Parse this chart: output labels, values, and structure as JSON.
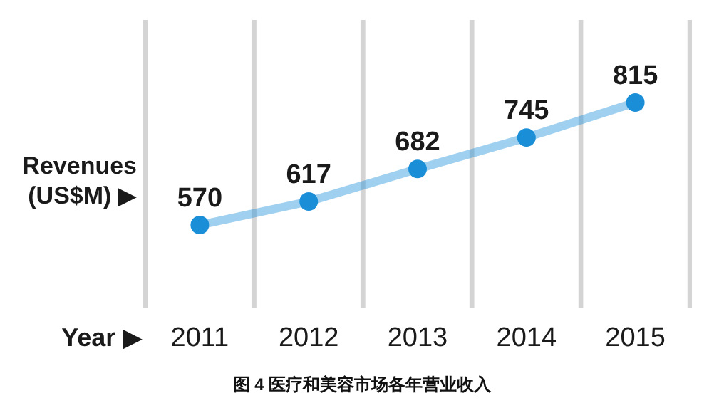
{
  "chart_data": {
    "type": "line",
    "title": "图 4  医疗和美容市场各年营业收入",
    "xlabel": "Year ▶",
    "ylabel": "Revenues (US$M) ▶",
    "categories": [
      "2011",
      "2012",
      "2013",
      "2014",
      "2015"
    ],
    "series": [
      {
        "color": "#1a8fd8",
        "values": [
          570,
          617,
          682,
          745,
          815
        ]
      }
    ],
    "marker": "circle",
    "data_labels": true,
    "grid": "x"
  }
}
